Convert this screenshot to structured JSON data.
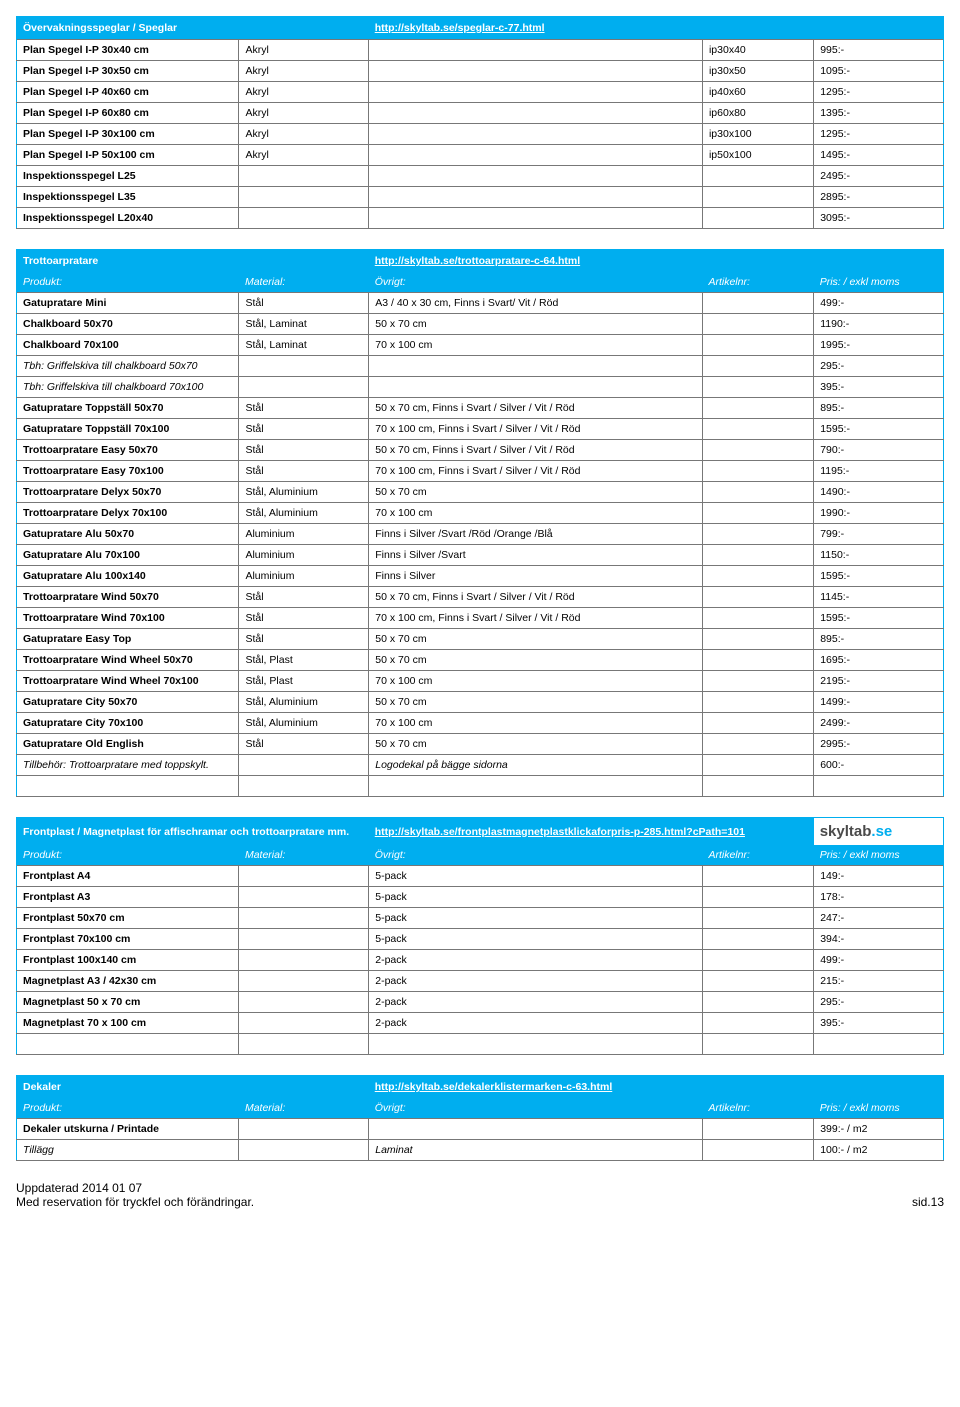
{
  "section1": {
    "title": "Övervakningsspeglar / Speglar",
    "link": "http://skyltab.se/speglar-c-77.html",
    "cols": [
      "produkt",
      "material",
      "ovrigt",
      "artikelnr",
      "pris"
    ],
    "rows": [
      {
        "produkt": "Plan Spegel I-P 30x40 cm",
        "material": "Akryl",
        "ovrigt": "",
        "artikelnr": "ip30x40",
        "pris": "995:-",
        "bold": true
      },
      {
        "produkt": "Plan Spegel I-P 30x50 cm",
        "material": "Akryl",
        "ovrigt": "",
        "artikelnr": "ip30x50",
        "pris": "1095:-",
        "bold": true
      },
      {
        "produkt": "Plan Spegel I-P 40x60 cm",
        "material": "Akryl",
        "ovrigt": "",
        "artikelnr": "ip40x60",
        "pris": "1295:-",
        "bold": true
      },
      {
        "produkt": "Plan Spegel I-P 60x80 cm",
        "material": "Akryl",
        "ovrigt": "",
        "artikelnr": "ip60x80",
        "pris": "1395:-",
        "bold": true
      },
      {
        "produkt": "Plan Spegel I-P 30x100 cm",
        "material": "Akryl",
        "ovrigt": "",
        "artikelnr": "ip30x100",
        "pris": "1295:-",
        "bold": true
      },
      {
        "produkt": "Plan Spegel I-P 50x100 cm",
        "material": "Akryl",
        "ovrigt": "",
        "artikelnr": "ip50x100",
        "pris": "1495:-",
        "bold": true
      },
      {
        "produkt": "Inspektionsspegel L25",
        "material": "",
        "ovrigt": "",
        "artikelnr": "",
        "pris": "2495:-",
        "bold": true
      },
      {
        "produkt": "Inspektionsspegel L35",
        "material": "",
        "ovrigt": "",
        "artikelnr": "",
        "pris": "2895:-",
        "bold": true
      },
      {
        "produkt": "Inspektionsspegel L20x40",
        "material": "",
        "ovrigt": "",
        "artikelnr": "",
        "pris": "3095:-",
        "bold": true
      }
    ]
  },
  "section2": {
    "title": "Trottoarpratare",
    "link": "http://skyltab.se/trottoarpratare-c-64.html",
    "subheaders": [
      "Produkt:",
      "Material:",
      "Övrigt:",
      "Artikelnr:",
      "Pris: / exkl moms"
    ],
    "rows": [
      {
        "produkt": "Gatupratare Mini",
        "material": "Stål",
        "ovrigt": "A3 / 40 x 30 cm, Finns i Svart/ Vit / Röd",
        "artikelnr": "",
        "pris": "499:-",
        "bold": true
      },
      {
        "produkt": "Chalkboard 50x70",
        "material": "Stål, Laminat",
        "ovrigt": "50 x 70 cm",
        "artikelnr": "",
        "pris": "1190:-",
        "bold": true
      },
      {
        "produkt": "Chalkboard 70x100",
        "material": "Stål, Laminat",
        "ovrigt": "70 x 100 cm",
        "artikelnr": "",
        "pris": "1995:-",
        "bold": true
      },
      {
        "produkt": "Tbh: Griffelskiva till chalkboard 50x70",
        "material": "",
        "ovrigt": "",
        "artikelnr": "",
        "pris": "295:-",
        "italic": true
      },
      {
        "produkt": "Tbh: Griffelskiva till chalkboard 70x100",
        "material": "",
        "ovrigt": "",
        "artikelnr": "",
        "pris": "395:-",
        "italic": true
      },
      {
        "produkt": "Gatupratare Toppställ 50x70",
        "material": "Stål",
        "ovrigt": "50 x 70 cm, Finns i Svart / Silver / Vit / Röd",
        "artikelnr": "",
        "pris": "895:-",
        "bold": true
      },
      {
        "produkt": "Gatupratare Toppställ 70x100",
        "material": "Stål",
        "ovrigt": "70 x 100 cm, Finns i Svart / Silver / Vit / Röd",
        "artikelnr": "",
        "pris": "1595:-",
        "bold": true
      },
      {
        "produkt": "Trottoarpratare Easy 50x70",
        "material": "Stål",
        "ovrigt": "50 x 70 cm, Finns i Svart / Silver / Vit / Röd",
        "artikelnr": "",
        "pris": "790:-",
        "bold": true
      },
      {
        "produkt": "Trottoarpratare Easy 70x100",
        "material": "Stål",
        "ovrigt": "70 x 100 cm, Finns i Svart / Silver / Vit / Röd",
        "artikelnr": "",
        "pris": "1195:-",
        "bold": true
      },
      {
        "produkt": "Trottoarpratare Delyx 50x70",
        "material": "Stål, Aluminium",
        "ovrigt": "50  x 70 cm",
        "artikelnr": "",
        "pris": "1490:-",
        "bold": true
      },
      {
        "produkt": "Trottoarpratare Delyx 70x100",
        "material": "Stål, Aluminium",
        "ovrigt": "70  x 100 cm",
        "artikelnr": "",
        "pris": "1990:-",
        "bold": true
      },
      {
        "produkt": "Gatupratare Alu 50x70",
        "material": "Aluminium",
        "ovrigt": "Finns i Silver /Svart /Röd /Orange /Blå",
        "artikelnr": "",
        "pris": "799:-",
        "bold": true
      },
      {
        "produkt": "Gatupratare Alu 70x100",
        "material": "Aluminium",
        "ovrigt": "Finns i Silver /Svart",
        "artikelnr": "",
        "pris": "1150:-",
        "bold": true
      },
      {
        "produkt": "Gatupratare Alu 100x140",
        "material": "Aluminium",
        "ovrigt": "Finns i Silver",
        "artikelnr": "",
        "pris": "1595:-",
        "bold": true
      },
      {
        "produkt": "Trottoarpratare Wind 50x70",
        "material": "Stål",
        "ovrigt": "50 x 70 cm, Finns i Svart / Silver / Vit / Röd",
        "artikelnr": "",
        "pris": "1145:-",
        "bold": true
      },
      {
        "produkt": "Trottoarpratare Wind 70x100",
        "material": "Stål",
        "ovrigt": "70 x 100 cm, Finns i Svart / Silver / Vit / Röd",
        "artikelnr": "",
        "pris": "1595:-",
        "bold": true
      },
      {
        "produkt": "Gatupratare Easy Top",
        "material": "Stål",
        "ovrigt": "50 x 70 cm",
        "artikelnr": "",
        "pris": "895:-",
        "bold": true
      },
      {
        "produkt": "Trottoarpratare Wind Wheel 50x70",
        "material": "Stål, Plast",
        "ovrigt": "50 x 70 cm",
        "artikelnr": "",
        "pris": "1695:-",
        "bold": true
      },
      {
        "produkt": "Trottoarpratare Wind Wheel 70x100",
        "material": "Stål, Plast",
        "ovrigt": "70 x 100 cm",
        "artikelnr": "",
        "pris": "2195:-",
        "bold": true
      },
      {
        "produkt": "Gatupratare City 50x70",
        "material": "Stål, Aluminium",
        "ovrigt": "50 x 70 cm",
        "artikelnr": "",
        "pris": "1499:-",
        "bold": true
      },
      {
        "produkt": "Gatupratare City 70x100",
        "material": "Stål, Aluminium",
        "ovrigt": "70 x 100 cm",
        "artikelnr": "",
        "pris": "2499:-",
        "bold": true
      },
      {
        "produkt": "Gatupratare Old English",
        "material": "Stål",
        "ovrigt": "50 x 70 cm",
        "artikelnr": "",
        "pris": "2995:-",
        "bold": true
      },
      {
        "produkt": "Tillbehör: Trottoarpratare med topp­skylt.",
        "material": "",
        "ovrigt": "Logodekal på bägge sidorna",
        "artikelnr": "",
        "pris": "600:-",
        "italic": true,
        "ovrigt_italic": true
      },
      {
        "produkt": "",
        "material": "",
        "ovrigt": "",
        "artikelnr": "",
        "pris": ""
      }
    ]
  },
  "section3": {
    "title": "Frontplast / Magnetplast för affischramar och trottoarpratare mm.",
    "link": "http://skyltab.se/frontplastmagnetplastklickaforpris-p-285.html?cPath=101",
    "brand_text_main": "skyltab",
    "brand_text_sub": ".se",
    "subheaders": [
      "Produkt:",
      "Material:",
      "Övrigt:",
      "Artikelnr:",
      "Pris: / exkl moms"
    ],
    "rows": [
      {
        "produkt": "Frontplast A4",
        "material": "",
        "ovrigt": "5-pack",
        "artikelnr": "",
        "pris": "149:-",
        "bold": true
      },
      {
        "produkt": "Frontplast A3",
        "material": "",
        "ovrigt": "5-pack",
        "artikelnr": "",
        "pris": "178:-",
        "bold": true
      },
      {
        "produkt": "Frontplast 50x70 cm",
        "material": "",
        "ovrigt": "5-pack",
        "artikelnr": "",
        "pris": "247:-",
        "bold": true
      },
      {
        "produkt": "Frontplast 70x100 cm",
        "material": "",
        "ovrigt": "5-pack",
        "artikelnr": "",
        "pris": "394:-",
        "bold": true
      },
      {
        "produkt": "Frontplast 100x140 cm",
        "material": "",
        "ovrigt": "2-pack",
        "artikelnr": "",
        "pris": "499:-",
        "bold": true
      },
      {
        "produkt": "Magnetplast A3 / 42x30 cm",
        "material": "",
        "ovrigt": "2-pack",
        "artikelnr": "",
        "pris": "215:-",
        "bold": true
      },
      {
        "produkt": "Magnetplast 50 x 70 cm",
        "material": "",
        "ovrigt": "2-pack",
        "artikelnr": "",
        "pris": "295:-",
        "bold": true
      },
      {
        "produkt": "Magnetplast 70 x 100 cm",
        "material": "",
        "ovrigt": "2-pack",
        "artikelnr": "",
        "pris": "395:-",
        "bold": true
      },
      {
        "produkt": "",
        "material": "",
        "ovrigt": "",
        "artikelnr": "",
        "pris": ""
      }
    ]
  },
  "section4": {
    "title": "Dekaler",
    "link": "http://skyltab.se/dekalerklistermarken-c-63.html",
    "subheaders": [
      "Produkt:",
      "Material:",
      "Övrigt:",
      "Artikelnr:",
      "Pris: / exkl moms"
    ],
    "rows": [
      {
        "produkt": "Dekaler utskurna / Printade",
        "material": "",
        "ovrigt": "",
        "artikelnr": "",
        "pris": "399:- / m2",
        "bold": true
      },
      {
        "produkt": "Tillägg",
        "material": "",
        "ovrigt": "Laminat",
        "artikelnr": "",
        "pris": "100:- / m2",
        "italic": true,
        "ovrigt_italic": true
      }
    ]
  },
  "footer": {
    "line1": "Uppdaterad 2014 01 07",
    "line2": "Med reservation för tryckfel och förändringar.",
    "page": "sid.13"
  },
  "colwidths": [
    "24%",
    "14%",
    "36%",
    "12%",
    "14%"
  ]
}
